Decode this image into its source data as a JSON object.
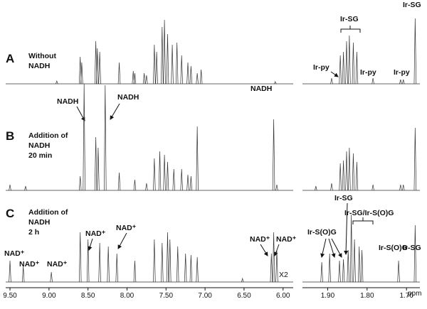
{
  "chart_data": [
    {
      "type": "spectrum",
      "xlim": [
        9.555,
        5.87
      ],
      "xticks": [
        {
          "value": 9.5,
          "label": "9.50"
        },
        {
          "value": 9.0,
          "label": "9.00"
        },
        {
          "value": 8.5,
          "label": "8.50"
        },
        {
          "value": 8.0,
          "label": "8.00"
        },
        {
          "value": 7.5,
          "label": "7.50"
        },
        {
          "value": 7.0,
          "label": "7.00"
        },
        {
          "value": 6.5,
          "label": "6.50"
        },
        {
          "value": 6.0,
          "label": "6.00"
        }
      ],
      "traces": [
        {
          "panel": "A",
          "description": [
            "Without",
            "NADH"
          ],
          "peaks_x": [
            8.9,
            8.6,
            8.58,
            8.4,
            8.38,
            8.35,
            8.1,
            7.92,
            7.9,
            7.78,
            7.75,
            7.65,
            7.62,
            7.55,
            7.52,
            7.48,
            7.42,
            7.36,
            7.3,
            7.22,
            7.18,
            7.1,
            7.05,
            6.1
          ],
          "values": [
            4,
            38,
            30,
            60,
            50,
            45,
            30,
            18,
            15,
            15,
            12,
            55,
            45,
            80,
            90,
            70,
            55,
            58,
            40,
            30,
            25,
            15,
            20,
            3
          ]
        },
        {
          "panel": "B",
          "description": [
            "Addition of",
            "NADH",
            "20 min"
          ],
          "peaks_x": [
            9.5,
            9.3,
            8.6,
            8.55,
            8.4,
            8.37,
            8.28,
            8.1,
            7.9,
            7.75,
            7.65,
            7.58,
            7.52,
            7.48,
            7.4,
            7.3,
            7.22,
            7.18,
            7.1,
            6.12,
            6.08
          ],
          "values": [
            8,
            6,
            20,
            150,
            75,
            60,
            148,
            25,
            15,
            10,
            45,
            55,
            50,
            40,
            30,
            30,
            22,
            20,
            90,
            100,
            8
          ]
        },
        {
          "panel": "C",
          "description": [
            "Addition of",
            "NADH",
            "2 h"
          ],
          "peaks_x": [
            9.5,
            9.33,
            8.97,
            8.6,
            8.5,
            8.35,
            8.24,
            8.13,
            7.9,
            7.65,
            7.55,
            7.48,
            7.45,
            7.35,
            7.25,
            7.18,
            7.1,
            6.52,
            6.15,
            6.12,
            6.08
          ],
          "values": [
            30,
            22,
            14,
            70,
            60,
            55,
            50,
            40,
            30,
            60,
            55,
            70,
            60,
            50,
            40,
            38,
            35,
            5,
            40,
            70,
            45
          ]
        }
      ],
      "annotations": [
        "NADH",
        "NADH",
        "NADH",
        "NAD⁺",
        "NAD⁺",
        "NAD⁺",
        "NAD⁺",
        "NAD⁺",
        "NAD⁺",
        "NAD⁺",
        "X2"
      ]
    },
    {
      "type": "spectrum",
      "xlim": [
        1.964,
        1.666
      ],
      "x_label": "ppm",
      "xticks": [
        {
          "value": 1.9,
          "label": "1.90"
        },
        {
          "value": 1.8,
          "label": "1.80"
        },
        {
          "value": 1.7,
          "label": "1.70"
        }
      ],
      "traces": [
        {
          "peaks_x": [
            1.89,
            1.868,
            1.86,
            1.852,
            1.845,
            1.835,
            1.826,
            1.785,
            1.715,
            1.708,
            1.678
          ],
          "values": [
            8,
            40,
            45,
            60,
            68,
            58,
            45,
            8,
            6,
            6,
            92
          ]
        },
        {
          "peaks_x": [
            1.93,
            1.89,
            1.868,
            1.86,
            1.852,
            1.845,
            1.835,
            1.826,
            1.785,
            1.715,
            1.708,
            1.678
          ],
          "values": [
            6,
            10,
            38,
            42,
            55,
            60,
            52,
            40,
            8,
            8,
            8,
            88
          ]
        },
        {
          "peaks_x": [
            1.915,
            1.895,
            1.87,
            1.86,
            1.848,
            1.84,
            1.832,
            1.82,
            1.813,
            1.72,
            1.678
          ],
          "values": [
            28,
            40,
            30,
            32,
            45,
            95,
            60,
            50,
            45,
            30,
            80
          ]
        }
      ],
      "annotations": [
        "Ir-SG",
        "Ir-py",
        "Ir-py",
        "Ir-py",
        "Ir-SG",
        "Ir-SG",
        "Ir-SG/Ir-S(O)G",
        "Ir-S(O)G",
        "Ir-S(O)G",
        "Ir-SG"
      ]
    }
  ]
}
